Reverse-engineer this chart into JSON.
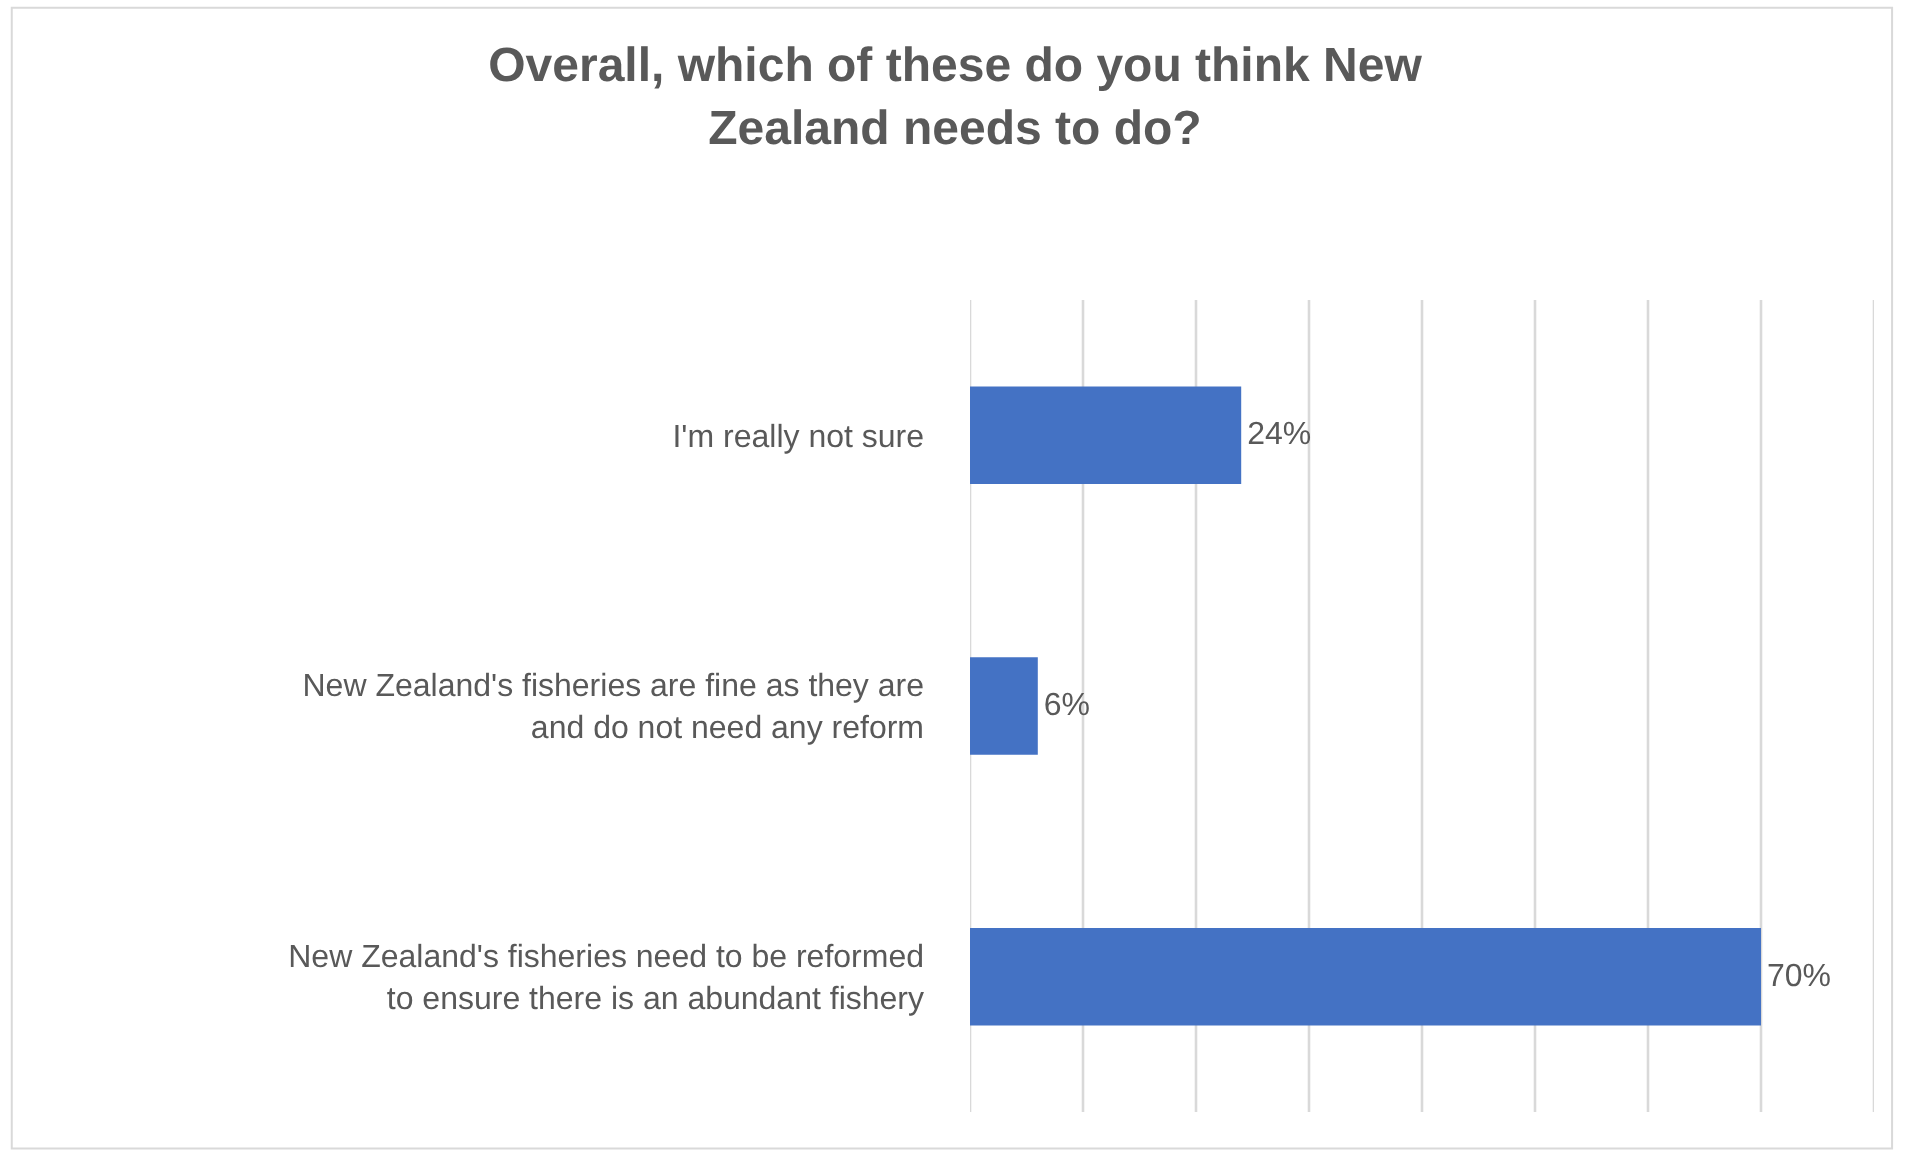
{
  "chart_data": {
    "type": "bar",
    "orientation": "horizontal",
    "title": "Overall, which of these do you think New Zealand needs to do?",
    "categories": [
      "I'm really not sure",
      "New Zealand's fisheries are fine as they are and do not need any reform",
      "New Zealand's fisheries need to be reformed to ensure there is an abundant fishery"
    ],
    "values": [
      24,
      6,
      70
    ],
    "value_labels": [
      "24%",
      "6%",
      "70%"
    ],
    "color": "#4472c4",
    "xlim": [
      0,
      80
    ],
    "xticks": [
      {
        "value": 0,
        "label": null
      },
      {
        "value": 10,
        "label": null
      },
      {
        "value": 20,
        "label": null
      },
      {
        "value": 30,
        "label": null
      },
      {
        "value": 40,
        "label": null
      },
      {
        "value": 50,
        "label": null
      },
      {
        "value": 60,
        "label": null
      },
      {
        "value": 70,
        "label": null
      },
      {
        "value": 80,
        "label": null
      }
    ],
    "grid": "x",
    "tick_labels": "y"
  }
}
